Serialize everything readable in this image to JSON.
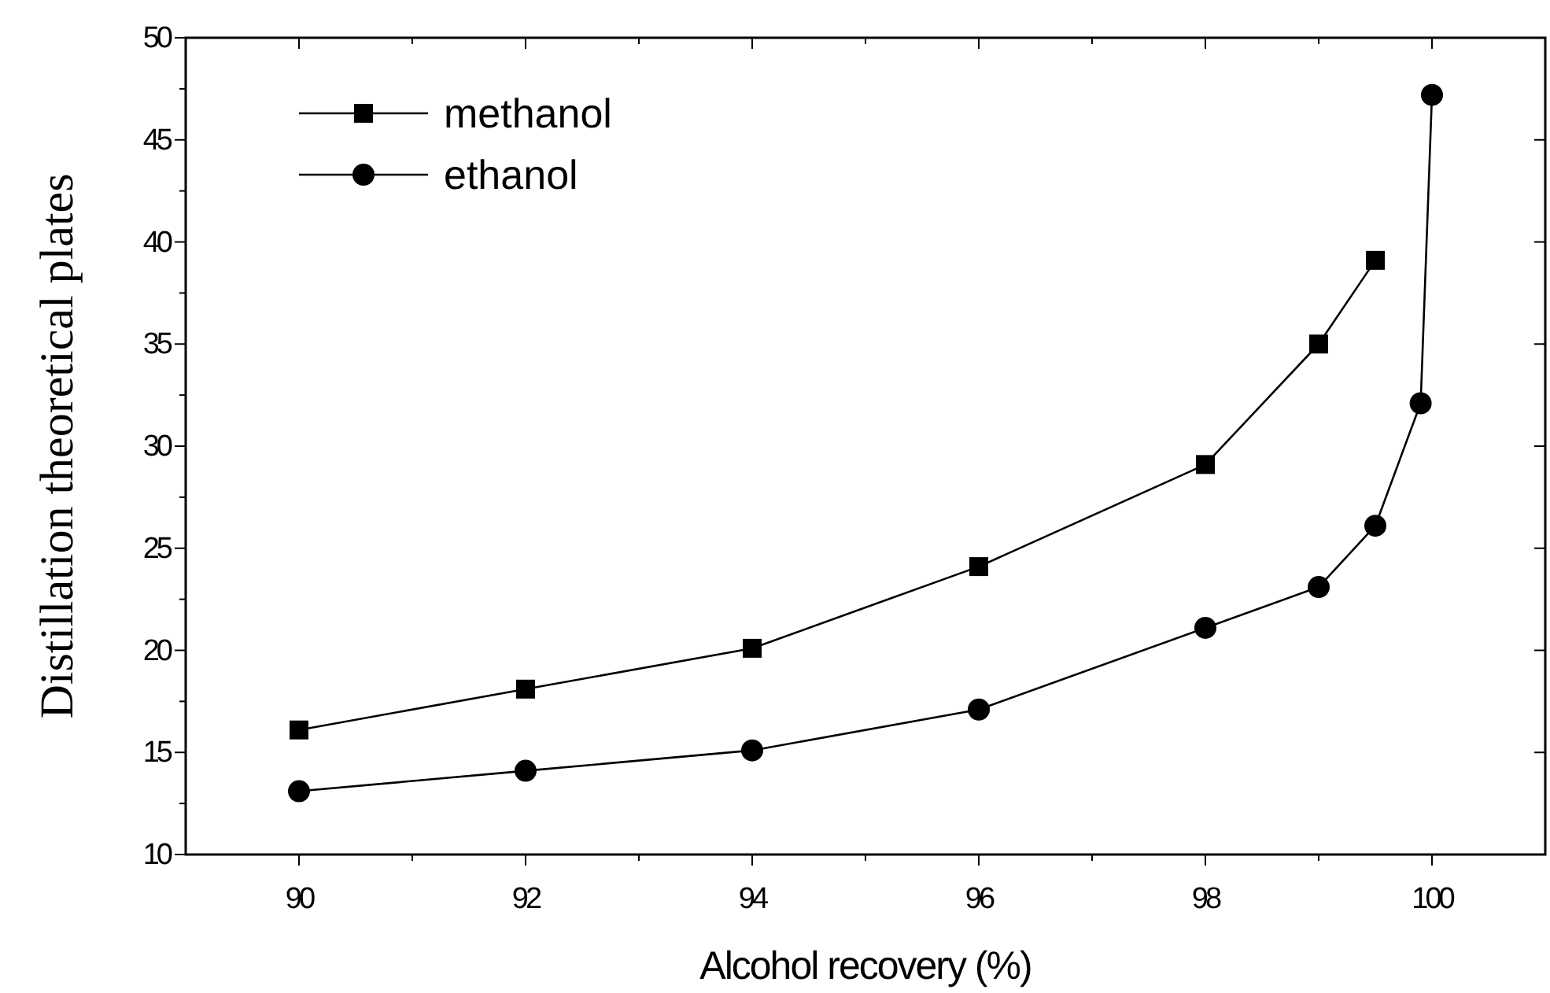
{
  "chart_data": {
    "type": "line",
    "xlabel": "Alcohol recovery (%)",
    "ylabel": "Distillation theoretical plates",
    "xlim": [
      89,
      101
    ],
    "xticks": [
      90,
      {
        "value": 91,
        "label": null
      },
      92,
      {
        "value": 93,
        "label": null
      },
      94,
      {
        "value": 95,
        "label": null
      },
      96,
      {
        "value": 97,
        "label": null
      },
      98,
      {
        "value": 99,
        "label": null
      },
      100
    ],
    "ylim": [
      10,
      50
    ],
    "yticks": [
      10,
      {
        "value": 12.5,
        "label": null
      },
      15,
      {
        "value": 17.5,
        "label": null
      },
      20,
      {
        "value": 22.5,
        "label": null
      },
      25,
      {
        "value": 27.5,
        "label": null
      },
      30,
      {
        "value": 32.5,
        "label": null
      },
      35,
      {
        "value": 37.5,
        "label": null
      },
      40,
      {
        "value": 42.5,
        "label": null
      },
      45,
      {
        "value": 47.5,
        "label": null
      },
      50
    ],
    "legend": "top left",
    "grid": false,
    "line_style": "solid",
    "series": [
      {
        "name": "methanol",
        "color": "#000000",
        "marker": "square",
        "x": [
          90,
          92,
          94,
          96,
          98,
          99,
          99.5
        ],
        "values": [
          16.1,
          18.1,
          20.1,
          24.1,
          29.1,
          35,
          39.1
        ]
      },
      {
        "name": "ethanol",
        "color": "#000000",
        "marker": "circle",
        "x": [
          90,
          92,
          94,
          96,
          98,
          99,
          99.5,
          99.9,
          100
        ],
        "values": [
          13.1,
          14.1,
          15.1,
          17.1,
          21.1,
          23.1,
          26.1,
          32.1,
          47.2
        ]
      }
    ]
  }
}
